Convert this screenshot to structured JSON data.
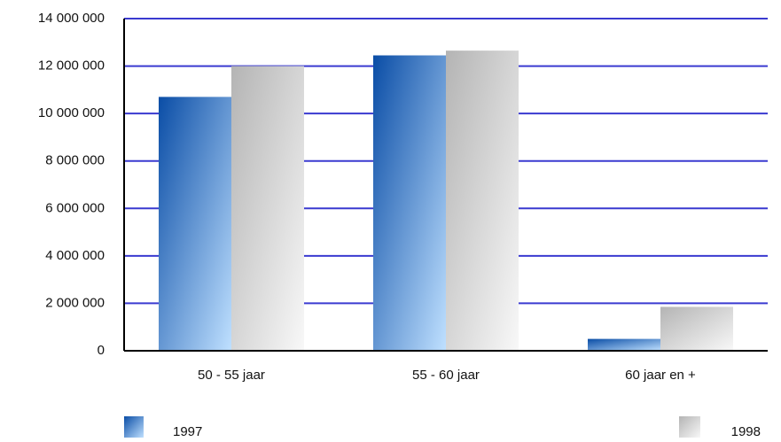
{
  "chart_data": {
    "type": "bar",
    "categories": [
      "50 - 55 jaar",
      "55 - 60 jaar",
      "60 jaar en +"
    ],
    "series": [
      {
        "name": "1997",
        "color": "#1158b5",
        "values": [
          10700000,
          12450000,
          500000
        ]
      },
      {
        "name": "1998",
        "color": "#b4b4b4",
        "values": [
          12000000,
          12650000,
          1850000
        ]
      }
    ],
    "ylim": [
      0,
      14000000
    ],
    "yticks": [
      {
        "value": 0,
        "label": "0"
      },
      {
        "value": 2000000,
        "label": "2 000 000"
      },
      {
        "value": 4000000,
        "label": "4 000 000"
      },
      {
        "value": 6000000,
        "label": "6 000 000"
      },
      {
        "value": 8000000,
        "label": "8 000 000"
      },
      {
        "value": 10000000,
        "label": "10 000 000"
      },
      {
        "value": 12000000,
        "label": "12 000 000"
      },
      {
        "value": 14000000,
        "label": "14 000 000"
      }
    ],
    "grid": true,
    "grid_color": "#3a3ad0",
    "legend": "bottom"
  }
}
